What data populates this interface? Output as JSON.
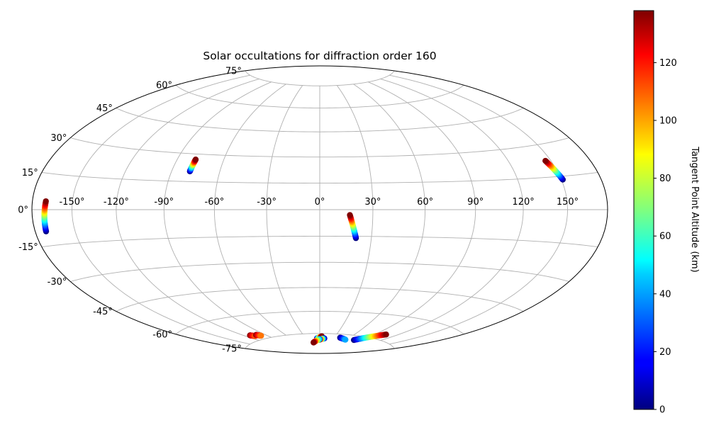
{
  "chart_data": {
    "type": "scatter",
    "projection": "hammer",
    "title": "Solar occultations for diffraction order 160",
    "lon_ticks": [
      -150,
      -120,
      -90,
      -60,
      -30,
      0,
      30,
      60,
      90,
      120,
      150
    ],
    "lat_ticks": [
      -75,
      -60,
      -45,
      -30,
      -15,
      0,
      15,
      30,
      45,
      60,
      75
    ],
    "lon_tick_labels": [
      "-150°",
      "-120°",
      "-90°",
      "-60°",
      "-30°",
      "0°",
      "30°",
      "60°",
      "90°",
      "120°",
      "150°"
    ],
    "lat_tick_labels": [
      "-75°",
      "-60°",
      "-45°",
      "-30°",
      "-15°",
      "0°",
      "15°",
      "30°",
      "45°",
      "60°",
      "75°"
    ],
    "grid": true,
    "colorbar": {
      "label": "Tangent Point Altitude (km)",
      "range": [
        0,
        138
      ],
      "ticks": [
        0,
        20,
        40,
        60,
        80,
        100,
        120
      ],
      "tick_labels": [
        "0",
        "20",
        "40",
        "60",
        "80",
        "100",
        "120"
      ],
      "colormap": "jet"
    },
    "occultations": [
      {
        "lon_start": -171.5,
        "lat_start": -9.0,
        "lon_end": -169.5,
        "lat_end": 3.5,
        "alt_start": 0,
        "alt_end": 138
      },
      {
        "lon_start": -78.5,
        "lat_start": 20.5,
        "lon_end": -78.0,
        "lat_end": 27.0,
        "alt_start": 0,
        "alt_end": 138
      },
      {
        "lon_start": 151.0,
        "lat_start": 13.5,
        "lon_end": 146.0,
        "lat_end": 22.5,
        "alt_start": 0,
        "alt_end": 138
      },
      {
        "lon_start": 21.0,
        "lat_start": -16.0,
        "lon_end": 17.0,
        "lat_end": -3.0,
        "alt_start": 0,
        "alt_end": 138
      },
      {
        "lon_start": -6.0,
        "lat_start": -78.5,
        "lon_end": 4.0,
        "lat_end": -77.0,
        "alt_start": 0,
        "alt_end": 138
      },
      {
        "lon_start": 10.0,
        "lat_start": -78.5,
        "lon_end": -1.5,
        "lat_end": -79.5,
        "alt_start": 0,
        "alt_end": 138
      },
      {
        "lon_start": 0.0,
        "lat_start": -79.0,
        "lon_end": -18.0,
        "lat_end": -81.5,
        "alt_start": 30,
        "alt_end": 138
      },
      {
        "lon_start": 42.0,
        "lat_start": -77.5,
        "lon_end": 58.0,
        "lat_end": -78.5,
        "alt_start": 0,
        "alt_end": 40
      },
      {
        "lon_start": 76.0,
        "lat_start": -78.0,
        "lon_end": 105.0,
        "lat_end": -71.5,
        "alt_start": 0,
        "alt_end": 138
      },
      {
        "lon_start": -112.0,
        "lat_start": -71.5,
        "lon_end": -108.0,
        "lat_end": -72.5,
        "alt_start": 138,
        "alt_end": 110
      },
      {
        "lon_start": -103.0,
        "lat_start": -72.0,
        "lon_end": -99.0,
        "lat_end": -73.0,
        "alt_start": 138,
        "alt_end": 105
      }
    ]
  }
}
